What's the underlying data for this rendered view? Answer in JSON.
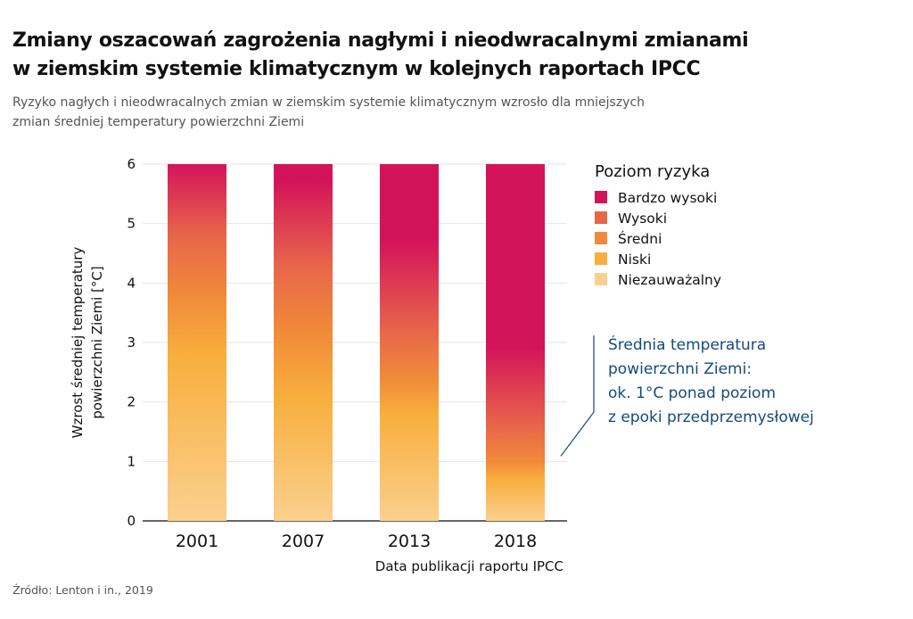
{
  "title_lines": [
    "Zmiany oszacowań zagrożenia nagłymi i nieodwracalnymi zmianami",
    "w ziemskim systemie klimatycznym w kolejnych raportach IPCC"
  ],
  "subtitle_lines": [
    "Ryzyko nagłych i nieodwracalnych zmian w ziemskim systemie klimatycznym wzrosło dla mniejszych",
    "zmian średniej temperatury powierzchni Ziemi"
  ],
  "source": "Źródło: Lenton i in., 2019",
  "chart_data": {
    "type": "bar",
    "categories": [
      "2001",
      "2007",
      "2013",
      "2018"
    ],
    "ylabel_lines": [
      "Wzrost średniej temperatury",
      "powierzchni Ziemi [°C]"
    ],
    "xlabel": "Data publikacji raportu IPCC",
    "ylim": [
      0,
      6
    ],
    "yticks": [
      "0",
      "1",
      "2",
      "3",
      "4",
      "5",
      "6"
    ],
    "grid": true,
    "legend_title": "Poziom ryzyka",
    "legend_placement": "top-right",
    "levels": [
      {
        "name": "Bardzo wysoki",
        "color": "#d4145a"
      },
      {
        "name": "Wysoki",
        "color": "#e8654a"
      },
      {
        "name": "Średni",
        "color": "#f08a3a"
      },
      {
        "name": "Niski",
        "color": "#f8ae3c"
      },
      {
        "name": "Niezauważalny",
        "color": "#fbd08e"
      }
    ],
    "series": [
      {
        "name": "2001",
        "value": 6,
        "level_centers_degC": {
          "Niezauważalny": 0,
          "Niski": 2.8,
          "Średni": 3.8,
          "Wysoki": 4.8,
          "Bardzo wysoki": 6.4
        }
      },
      {
        "name": "2007",
        "value": 6,
        "level_centers_degC": {
          "Niezauważalny": 0,
          "Niski": 2.1,
          "Średni": 3.2,
          "Wysoki": 4.3,
          "Bardzo wysoki": 5.7
        }
      },
      {
        "name": "2013",
        "value": 6,
        "level_centers_degC": {
          "Niezauważalny": 0,
          "Niski": 1.8,
          "Średni": 2.4,
          "Wysoki": 3.2,
          "Bardzo wysoki": 4.7
        }
      },
      {
        "name": "2018",
        "value": 6,
        "level_centers_degC": {
          "Niezauważalny": 0,
          "Niski": 0.7,
          "Średni": 1.0,
          "Wysoki": 1.6,
          "Bardzo wysoki": 2.9
        }
      }
    ],
    "annotation": {
      "lines": [
        "Średnia temperatura",
        "powierzchni Ziemi:",
        "ok. 1°C ponad poziom",
        "z epoki przedprzemysłowej"
      ],
      "value_degC": 1,
      "color": "#154a7a"
    }
  }
}
